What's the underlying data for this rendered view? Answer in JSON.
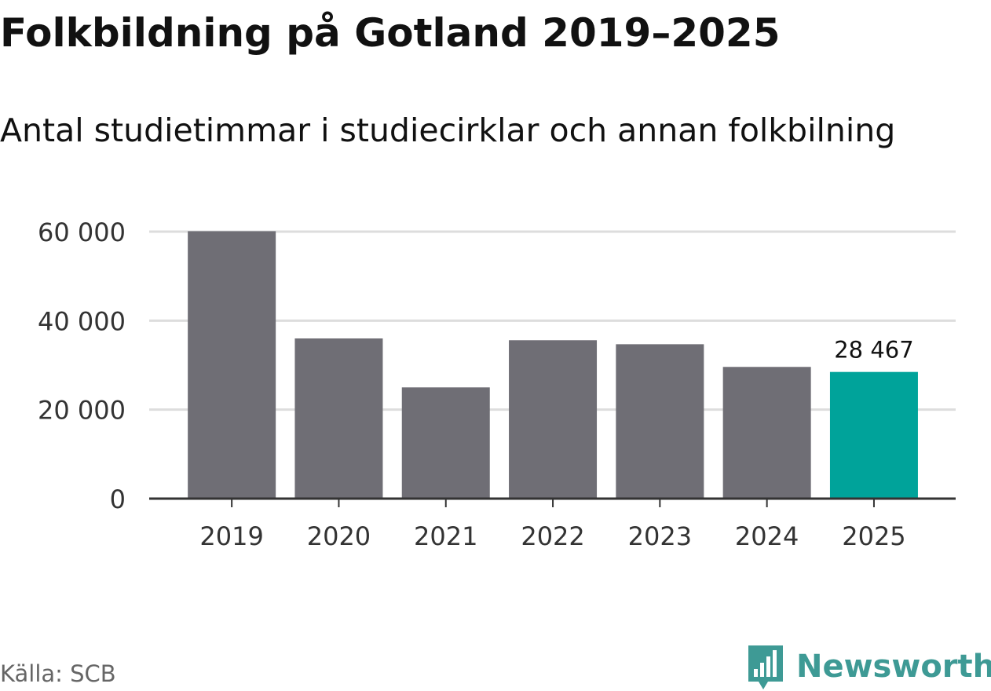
{
  "header": {
    "title": "Folkbildning på Gotland 2019–2025",
    "subtitle": "Antal studietimmar i studiecirklar och annan folkbilning"
  },
  "footer": {
    "source": "Källa: SCB",
    "brand": "Newsworthy",
    "brand_icon": "bar-chart-speech-bubble-icon"
  },
  "colors": {
    "bar_default": "#6f6e75",
    "bar_highlight": "#00a39a",
    "brand": "#3e9a95",
    "grid": "#dddddd",
    "axis": "#333333"
  },
  "chart_data": {
    "type": "bar",
    "categories": [
      "2019",
      "2020",
      "2021",
      "2022",
      "2023",
      "2024",
      "2025"
    ],
    "values": [
      60100,
      36000,
      25000,
      35600,
      34700,
      29600,
      28467
    ],
    "highlight_index": 6,
    "data_labels": [
      {
        "index": 6,
        "text": "28 467"
      }
    ],
    "y_ticks": [
      {
        "value": 0,
        "label": "0"
      },
      {
        "value": 20000,
        "label": "20 000"
      },
      {
        "value": 40000,
        "label": "40 000"
      },
      {
        "value": 60000,
        "label": "60 000"
      }
    ],
    "ylim": [
      0,
      60000
    ],
    "grid": true
  }
}
